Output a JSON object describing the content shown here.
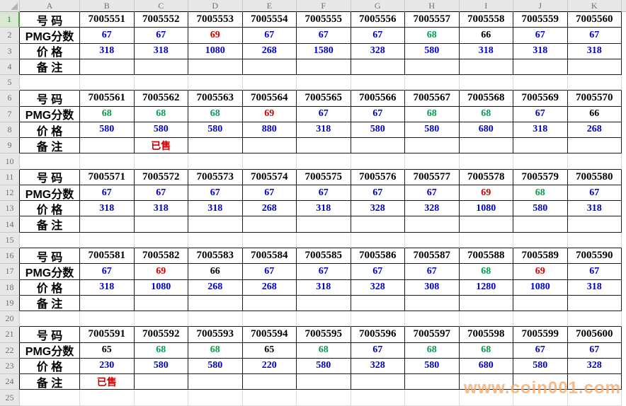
{
  "app": {
    "watermark": "www.coin001.com"
  },
  "colors": {
    "price": "#0000CC",
    "note": "#CC0000",
    "number": "#000000",
    "active_header_bg": "#D9E8D2",
    "active_header_accent": "#4F9E4F",
    "watermark": "#F6A96A"
  },
  "sheet": {
    "column_headers": [
      "A",
      "B",
      "C",
      "D",
      "E",
      "F",
      "G",
      "H",
      "I",
      "J",
      "K"
    ],
    "row_count": 25,
    "active_row": 1,
    "row_labels": {
      "number": "号 码",
      "pmg": "PMG分数",
      "price": "价 格",
      "note": "备 注"
    },
    "score_colors": {
      "65": "#000000",
      "66": "#000000",
      "67": "#0000CC",
      "68": "#00A14F",
      "69": "#CC0000"
    },
    "blocks": [
      {
        "numbers": [
          "7005551",
          "7005552",
          "7005553",
          "7005554",
          "7005555",
          "7005556",
          "7005557",
          "7005558",
          "7005559",
          "7005560"
        ],
        "scores": [
          "67",
          "67",
          "69",
          "67",
          "67",
          "67",
          "68",
          "66",
          "67",
          "67"
        ],
        "prices": [
          "318",
          "318",
          "1080",
          "268",
          "1580",
          "328",
          "580",
          "318",
          "318",
          "318"
        ],
        "notes": [
          "",
          "",
          "",
          "",
          "",
          "",
          "",
          "",
          "",
          ""
        ]
      },
      {
        "numbers": [
          "7005561",
          "7005562",
          "7005563",
          "7005564",
          "7005565",
          "7005566",
          "7005567",
          "7005568",
          "7005569",
          "7005570"
        ],
        "scores": [
          "68",
          "68",
          "68",
          "69",
          "67",
          "67",
          "68",
          "68",
          "67",
          "66"
        ],
        "prices": [
          "580",
          "580",
          "580",
          "880",
          "318",
          "580",
          "580",
          "680",
          "318",
          "268"
        ],
        "notes": [
          "",
          "已售",
          "",
          "",
          "",
          "",
          "",
          "",
          "",
          ""
        ]
      },
      {
        "numbers": [
          "7005571",
          "7005572",
          "7005573",
          "7005574",
          "7005575",
          "7005576",
          "7005577",
          "7005578",
          "7005579",
          "7005580"
        ],
        "scores": [
          "67",
          "67",
          "67",
          "67",
          "67",
          "67",
          "67",
          "69",
          "68",
          "67"
        ],
        "prices": [
          "318",
          "318",
          "318",
          "268",
          "318",
          "328",
          "328",
          "1080",
          "580",
          "318"
        ],
        "notes": [
          "",
          "",
          "",
          "",
          "",
          "",
          "",
          "",
          "",
          ""
        ]
      },
      {
        "numbers": [
          "7005581",
          "7005582",
          "7005583",
          "7005584",
          "7005585",
          "7005586",
          "7005587",
          "7005588",
          "7005589",
          "7005590"
        ],
        "scores": [
          "67",
          "69",
          "66",
          "67",
          "67",
          "67",
          "67",
          "68",
          "69",
          "67"
        ],
        "prices": [
          "318",
          "1080",
          "268",
          "268",
          "318",
          "328",
          "308",
          "1280",
          "1080",
          "318"
        ],
        "notes": [
          "",
          "",
          "",
          "",
          "",
          "",
          "",
          "",
          "",
          ""
        ]
      },
      {
        "numbers": [
          "7005591",
          "7005592",
          "7005593",
          "7005594",
          "7005595",
          "7005596",
          "7005597",
          "7005598",
          "7005599",
          "7005600"
        ],
        "scores": [
          "65",
          "68",
          "68",
          "65",
          "68",
          "67",
          "68",
          "68",
          "67",
          "67"
        ],
        "prices": [
          "230",
          "580",
          "580",
          "220",
          "580",
          "328",
          "580",
          "680",
          "580",
          "328"
        ],
        "notes": [
          "已售",
          "",
          "",
          "",
          "",
          "",
          "",
          "",
          "",
          ""
        ]
      }
    ]
  }
}
